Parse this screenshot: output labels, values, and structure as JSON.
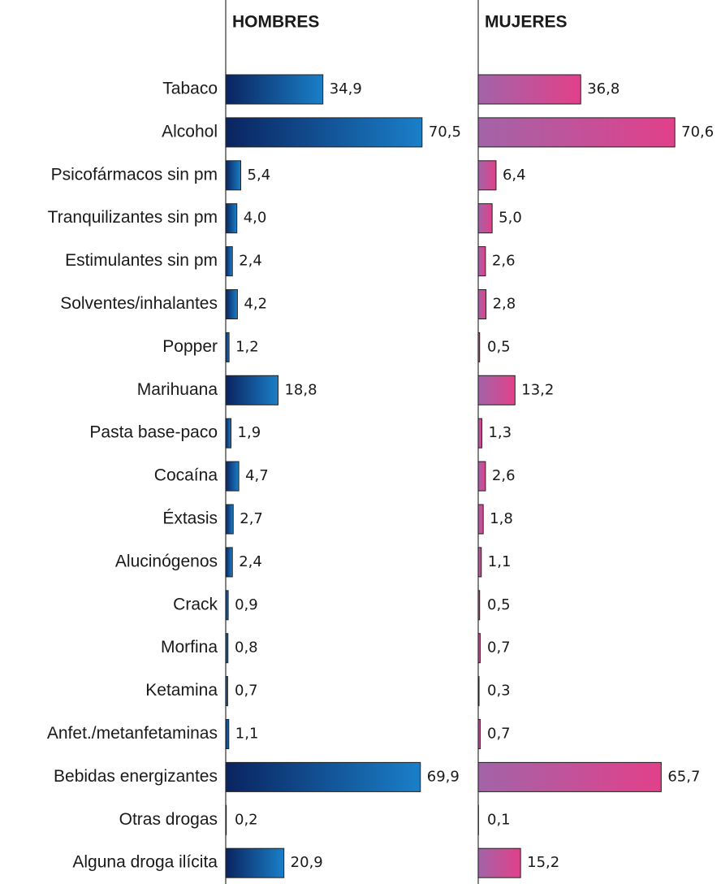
{
  "chart_data": {
    "type": "bar",
    "categories": [
      "Tabaco",
      "Alcohol",
      "Psicofármacos sin pm",
      "Tranquilizantes sin pm",
      "Estimulantes sin pm",
      "Solventes/inhalantes",
      "Popper",
      "Marihuana",
      "Pasta base-paco",
      "Cocaína",
      "Éxtasis",
      "Alucinógenos",
      "Crack",
      "Morfina",
      "Ketamina",
      "Anfet./metanfetaminas",
      "Bebidas energizantes",
      "Otras drogas",
      "Alguna droga ilícita"
    ],
    "series": [
      {
        "name": "HOMBRES",
        "color": [
          "#0a2460",
          "#1a7fc8"
        ],
        "values": [
          34.9,
          70.5,
          5.4,
          4.0,
          2.4,
          4.2,
          1.2,
          18.8,
          1.9,
          4.7,
          2.7,
          2.4,
          0.9,
          0.8,
          0.7,
          1.1,
          69.9,
          0.2,
          20.9
        ],
        "value_labels": [
          "34,9",
          "70,5",
          "5,4",
          "4,0",
          "2,4",
          "4,2",
          "1,2",
          "18,8",
          "1,9",
          "4,7",
          "2,7",
          "2,4",
          "0,9",
          "0,8",
          "0,7",
          "1,1",
          "69,9",
          "0,2",
          "20,9"
        ]
      },
      {
        "name": "MUJERES",
        "color": [
          "#a264a8",
          "#e2408a"
        ],
        "values": [
          36.8,
          70.6,
          6.4,
          5.0,
          2.6,
          2.8,
          0.5,
          13.2,
          1.3,
          2.6,
          1.8,
          1.1,
          0.5,
          0.7,
          0.3,
          0.7,
          65.7,
          0.1,
          15.2
        ],
        "value_labels": [
          "36,8",
          "70,6",
          "6,4",
          "5,0",
          "2,6",
          "2,8",
          "0,5",
          "13,2",
          "1,3",
          "2,6",
          "1,8",
          "1,1",
          "0,5",
          "0,7",
          "0,3",
          "0,7",
          "65,7",
          "0,1",
          "15,2"
        ]
      }
    ]
  }
}
